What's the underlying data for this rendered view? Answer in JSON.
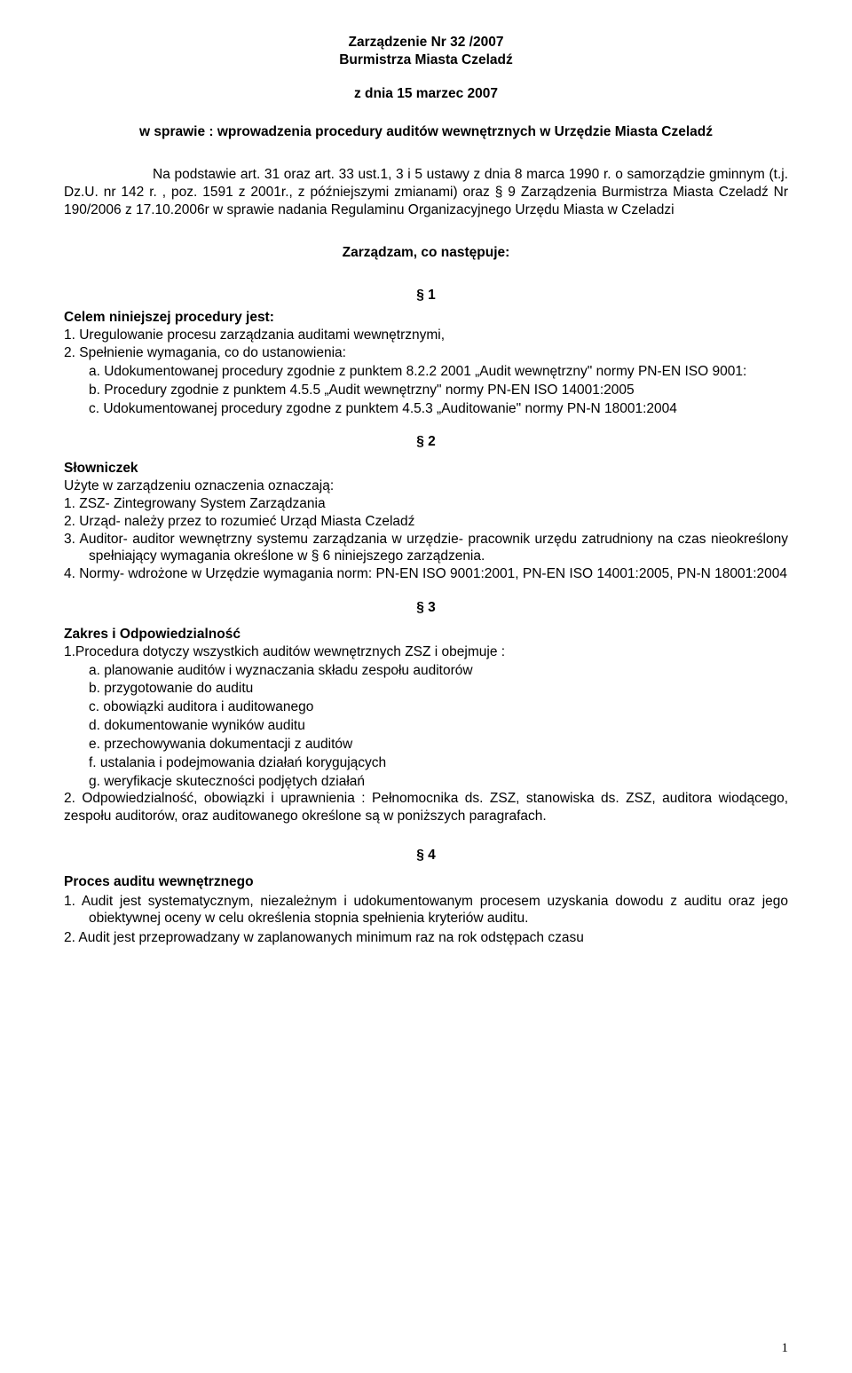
{
  "header": {
    "line1": "Zarządzenie Nr 32 /2007",
    "line2": "Burmistrza Miasta Czeladź",
    "line3": "z dnia 15 marzec 2007",
    "line4": "w sprawie : wprowadzenia procedury auditów wewnętrznych w Urzędzie Miasta Czeladź"
  },
  "preamble": {
    "p1": "Na podstawie art. 31 oraz art. 33 ust.1, 3 i 5 ustawy z dnia 8 marca 1990 r. o samorządzie gminnym (t.j. Dz.U. nr 142 r. , poz. 1591 z 2001r., z późniejszymi zmianami) oraz § 9 Zarządzenia Burmistrza Miasta Czeladź Nr 190/2006 z 17.10.2006r w sprawie nadania Regulaminu Organizacyjnego Urzędu Miasta w Czeladzi",
    "decree": "Zarządzam, co następuje:"
  },
  "s1": {
    "heading": "§ 1",
    "lead_bold": "Celem niniejszej procedury jest:",
    "i1": "1.  Uregulowanie procesu zarządzania auditami  wewnętrznymi,",
    "i2": "2.  Spełnienie wymagania, co do ustanowienia:",
    "a": "a. Udokumentowanej procedury zgodnie z punktem 8.2.2 2001 „Audit wewnętrzny\" normy PN-EN ISO 9001:",
    "b": "b. Procedury zgodnie z punktem 4.5.5 „Audit wewnętrzny\" normy PN-EN ISO 14001:2005",
    "c": "c. Udokumentowanej procedury zgodne z punktem 4.5.3 „Auditowanie\" normy PN-N 18001:2004"
  },
  "s2": {
    "heading": "§ 2",
    "title": "Słowniczek",
    "intro": "Użyte w zarządzeniu oznaczenia oznaczają:",
    "i1": "1.  ZSZ- Zintegrowany System Zarządzania",
    "i2": "2.  Urząd- należy przez to rozumieć Urząd Miasta Czeladź",
    "i3": "3.  Auditor- auditor wewnętrzny systemu zarządzania w urzędzie- pracownik urzędu zatrudniony na czas nieokreślony spełniający wymagania określone w § 6 niniejszego zarządzenia.",
    "i4": "4.  Normy- wdrożone w Urzędzie wymagania norm: PN-EN ISO 9001:2001, PN-EN ISO 14001:2005, PN-N 18001:2004"
  },
  "s3": {
    "heading": "§ 3",
    "title": "Zakres i Odpowiedzialność",
    "p1": "1.Procedura dotyczy wszystkich auditów wewnętrznych ZSZ i obejmuje :",
    "a": "a.  planowanie auditów i wyznaczania składu zespołu auditorów",
    "b": "b.  przygotowanie do auditu",
    "c": "c.  obowiązki auditora i auditowanego",
    "d": "d.  dokumentowanie wyników auditu",
    "e": "e.  przechowywania dokumentacji z auditów",
    "f": "f.   ustalania i podejmowania działań korygujących",
    "g": "g.  weryfikacje skuteczności podjętych działań",
    "p2": "2. Odpowiedzialność, obowiązki i uprawnienia : Pełnomocnika ds. ZSZ, stanowiska ds. ZSZ, auditora wiodącego, zespołu auditorów, oraz  auditowanego  określone są w poniższych paragrafach."
  },
  "s4": {
    "heading": "§ 4",
    "title": "Proces auditu wewnętrznego",
    "i1": "1.  Audit jest systematycznym, niezależnym i udokumentowanym procesem uzyskania dowodu z auditu oraz jego obiektywnej oceny w celu określenia stopnia spełnienia kryteriów auditu.",
    "i2": "2.  Audit jest przeprowadzany w zaplanowanych minimum raz na rok odstępach czasu"
  },
  "pageno": "1"
}
